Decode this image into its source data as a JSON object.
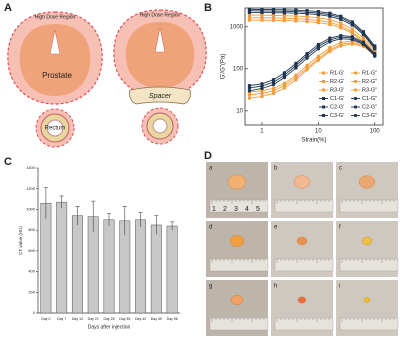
{
  "panel_labels": [
    "A",
    "B",
    "C",
    "D"
  ],
  "panel_a": {
    "high_dose_label": "High Dose Region",
    "prostate": "Prostate",
    "rectum": "Rectum",
    "spacer": "Spacer"
  },
  "chart_data": [
    {
      "type": "line",
      "x_label": "Strain(%)",
      "y_label": "G'/G''(Pa)",
      "log_x": true,
      "log_y": true,
      "legend": "lower right",
      "x": [
        0.6,
        1,
        1.6,
        2.5,
        4,
        6.3,
        10,
        16,
        25,
        40,
        63,
        100
      ],
      "xlim": [
        0.5,
        140
      ],
      "ylim": [
        4.6,
        2800
      ],
      "xticks": [
        1,
        10,
        100
      ],
      "yticks": [
        10,
        100,
        1000
      ],
      "series": [
        {
          "name": "R1-G'",
          "color": "#f39c3c",
          "marker": "square",
          "values": [
            1900,
            1890,
            1870,
            1840,
            1800,
            1740,
            1640,
            1480,
            1220,
            880,
            540,
            280
          ]
        },
        {
          "name": "R2-G'",
          "color": "#f39c3c",
          "marker": "square",
          "values": [
            1650,
            1640,
            1620,
            1600,
            1560,
            1500,
            1420,
            1280,
            1050,
            760,
            470,
            250
          ]
        },
        {
          "name": "R3-G'",
          "color": "#f39c3c",
          "marker": "square",
          "values": [
            1450,
            1440,
            1430,
            1410,
            1380,
            1330,
            1260,
            1140,
            950,
            700,
            430,
            230
          ]
        },
        {
          "name": "C1-G'",
          "color": "#1f3550",
          "marker": "square",
          "values": [
            2600,
            2590,
            2570,
            2540,
            2490,
            2420,
            2300,
            2100,
            1780,
            1300,
            760,
            350
          ]
        },
        {
          "name": "C2-G'",
          "color": "#1f3550",
          "marker": "square",
          "values": [
            2400,
            2390,
            2370,
            2340,
            2300,
            2230,
            2120,
            1940,
            1650,
            1200,
            700,
            320
          ]
        },
        {
          "name": "C3-G'",
          "color": "#1f3550",
          "marker": "square",
          "values": [
            2200,
            2190,
            2170,
            2150,
            2110,
            2050,
            1950,
            1780,
            1500,
            1100,
            650,
            300
          ]
        },
        {
          "name": "R1-G''",
          "color": "#f39c3c",
          "marker": "circle",
          "values": [
            28,
            30,
            34,
            45,
            70,
            120,
            200,
            320,
            420,
            460,
            390,
            240
          ]
        },
        {
          "name": "R2-G''",
          "color": "#f39c3c",
          "marker": "circle",
          "values": [
            24,
            26,
            30,
            40,
            62,
            105,
            175,
            280,
            380,
            420,
            360,
            220
          ]
        },
        {
          "name": "R3-G''",
          "color": "#f39c3c",
          "marker": "circle",
          "values": [
            20,
            22,
            26,
            35,
            55,
            95,
            160,
            260,
            350,
            390,
            340,
            210
          ]
        },
        {
          "name": "C1-G''",
          "color": "#1f3550",
          "marker": "circle",
          "values": [
            40,
            44,
            55,
            80,
            135,
            230,
            380,
            540,
            620,
            580,
            430,
            230
          ]
        },
        {
          "name": "C2-G''",
          "color": "#1f3550",
          "marker": "circle",
          "values": [
            35,
            39,
            48,
            70,
            120,
            205,
            340,
            490,
            570,
            540,
            400,
            215
          ]
        },
        {
          "name": "C3-G''",
          "color": "#1f3550",
          "marker": "circle",
          "values": [
            30,
            34,
            42,
            62,
            105,
            180,
            300,
            440,
            520,
            500,
            380,
            200
          ]
        }
      ]
    },
    {
      "type": "bar",
      "x_label": "Days after injection",
      "y_label": "CT value (HU)",
      "categories": [
        "Day 0",
        "Day 7",
        "Day 14",
        "Day 21",
        "Day 28",
        "Day 35",
        "Day 42",
        "Day 49",
        "Day 56"
      ],
      "values": [
        1060,
        1070,
        940,
        930,
        900,
        890,
        900,
        850,
        840
      ],
      "errors": [
        150,
        60,
        90,
        150,
        60,
        140,
        70,
        90,
        40
      ],
      "color": "#c8c8c8",
      "ylim": [
        0,
        1400
      ],
      "yticks": [
        0,
        200,
        400,
        600,
        800,
        1000,
        1200,
        1400
      ]
    }
  ],
  "panel_d": {
    "photo_labels": [
      "a",
      "b",
      "c",
      "d",
      "e",
      "f",
      "g",
      "h",
      "i"
    ],
    "ruler_numbers": [
      1,
      2,
      3,
      4,
      5
    ]
  }
}
